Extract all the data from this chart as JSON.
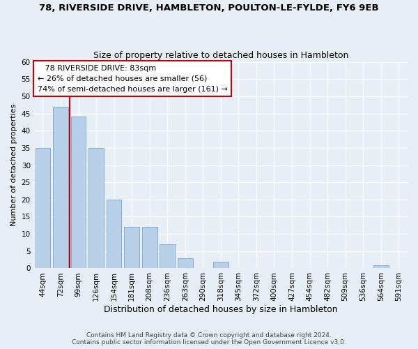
{
  "title_line1": "78, RIVERSIDE DRIVE, HAMBLETON, POULTON-LE-FYLDE, FY6 9EB",
  "title_line2": "Size of property relative to detached houses in Hambleton",
  "xlabel": "Distribution of detached houses by size in Hambleton",
  "ylabel": "Number of detached properties",
  "bar_labels": [
    "44sqm",
    "72sqm",
    "99sqm",
    "126sqm",
    "154sqm",
    "181sqm",
    "208sqm",
    "236sqm",
    "263sqm",
    "290sqm",
    "318sqm",
    "345sqm",
    "372sqm",
    "400sqm",
    "427sqm",
    "454sqm",
    "482sqm",
    "509sqm",
    "536sqm",
    "564sqm",
    "591sqm"
  ],
  "bar_values": [
    35,
    47,
    44,
    35,
    20,
    12,
    12,
    7,
    3,
    0,
    2,
    0,
    0,
    0,
    0,
    0,
    0,
    0,
    0,
    1,
    0
  ],
  "bar_color": "#b8d0e8",
  "bar_edge_color": "#7bafd4",
  "vline_color": "#cc0000",
  "vline_x_index": 1.5,
  "property_label": "78 RIVERSIDE DRIVE: 83sqm",
  "annotation_line1": "← 26% of detached houses are smaller (56)",
  "annotation_line2": "74% of semi-detached houses are larger (161) →",
  "ylim": [
    0,
    60
  ],
  "yticks": [
    0,
    5,
    10,
    15,
    20,
    25,
    30,
    35,
    40,
    45,
    50,
    55,
    60
  ],
  "footer_line1": "Contains HM Land Registry data © Crown copyright and database right 2024.",
  "footer_line2": "Contains public sector information licensed under the Open Government Licence v3.0.",
  "bg_color": "#e8eef5",
  "grid_color": "#ffffff",
  "annotation_box_facecolor": "#ffffff",
  "annotation_box_edgecolor": "#cc0000",
  "title1_fontsize": 9.5,
  "title2_fontsize": 9,
  "xlabel_fontsize": 9,
  "ylabel_fontsize": 8,
  "tick_fontsize": 7.5,
  "footer_fontsize": 6.5
}
